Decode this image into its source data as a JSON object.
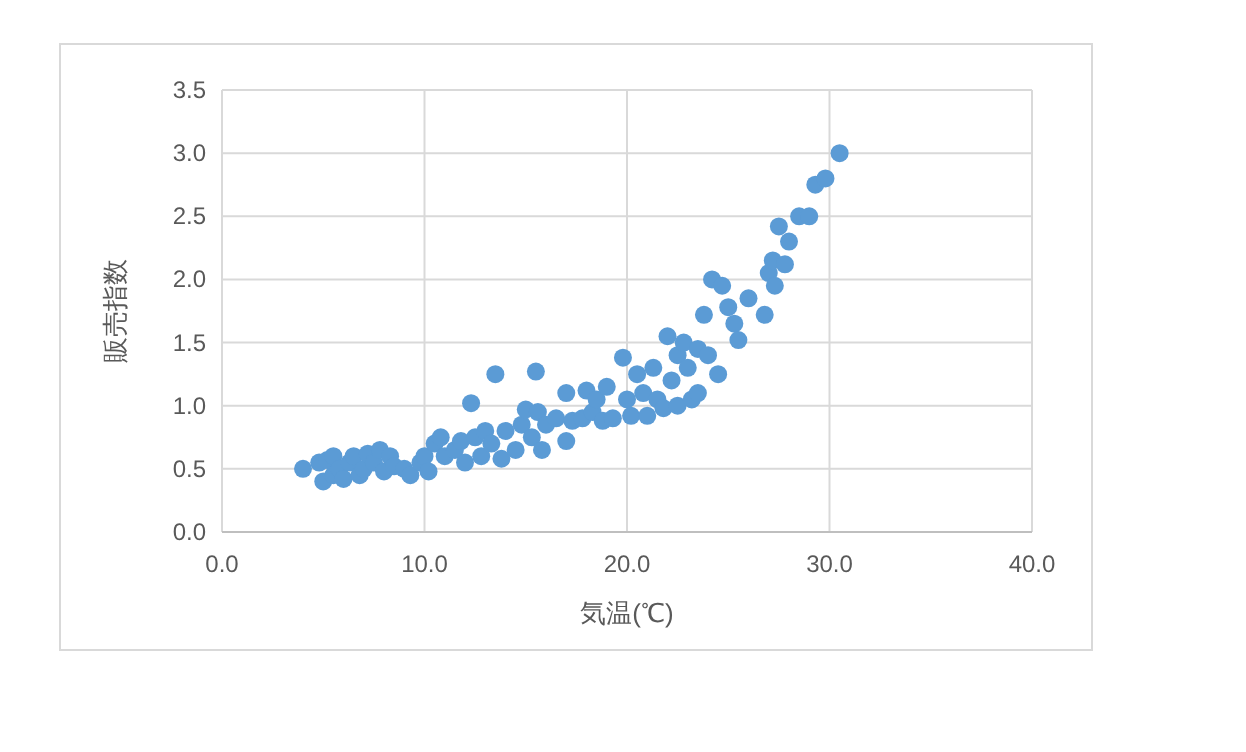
{
  "chart_data": {
    "type": "scatter",
    "xlabel": "気温(℃)",
    "ylabel": "販売指数",
    "grid": true,
    "marker": "circle",
    "xlim": [
      0,
      40
    ],
    "ylim": [
      0,
      3.5
    ],
    "xticks": [
      {
        "value": 0,
        "label": "0.0"
      },
      {
        "value": 10,
        "label": "10.0"
      },
      {
        "value": 20,
        "label": "20.0"
      },
      {
        "value": 30,
        "label": "30.0"
      },
      {
        "value": 40,
        "label": "40.0"
      }
    ],
    "yticks": [
      {
        "value": 0,
        "label": "0.0"
      },
      {
        "value": 0.5,
        "label": "0.5"
      },
      {
        "value": 1,
        "label": "1.0"
      },
      {
        "value": 1.5,
        "label": "1.5"
      },
      {
        "value": 2,
        "label": "2.0"
      },
      {
        "value": 2.5,
        "label": "2.5"
      },
      {
        "value": 3,
        "label": "3.0"
      },
      {
        "value": 3.5,
        "label": "3.5"
      }
    ],
    "series": [
      {
        "color": "#5b9bd5",
        "x": [
          4.0,
          4.8,
          5.0,
          5.2,
          5.5,
          5.5,
          5.8,
          6.0,
          6.3,
          6.5,
          6.8,
          7.0,
          7.2,
          7.5,
          7.8,
          8.0,
          8.3,
          8.5,
          9.0,
          9.3,
          9.8,
          10.0,
          10.2,
          10.5,
          10.8,
          11.0,
          11.5,
          11.8,
          12.0,
          12.3,
          12.5,
          12.8,
          13.0,
          13.3,
          13.5,
          13.8,
          14.0,
          14.5,
          14.8,
          15.0,
          15.3,
          15.5,
          15.6,
          15.8,
          16.0,
          16.5,
          17.0,
          17.0,
          17.3,
          17.8,
          18.0,
          18.3,
          18.5,
          18.8,
          19.0,
          19.3,
          19.8,
          20.0,
          20.2,
          20.5,
          20.8,
          21.0,
          21.3,
          21.5,
          21.8,
          22.0,
          22.2,
          22.5,
          22.5,
          22.8,
          23.0,
          23.2,
          23.5,
          23.5,
          23.8,
          24.0,
          24.2,
          24.5,
          24.7,
          25.0,
          25.3,
          25.5,
          26.0,
          26.8,
          27.0,
          27.2,
          27.3,
          27.5,
          27.8,
          28.0,
          28.5,
          29.0,
          29.3,
          29.8,
          30.5
        ],
        "values": [
          0.5,
          0.55,
          0.4,
          0.57,
          0.45,
          0.6,
          0.5,
          0.42,
          0.55,
          0.6,
          0.45,
          0.5,
          0.62,
          0.55,
          0.65,
          0.48,
          0.6,
          0.52,
          0.5,
          0.45,
          0.55,
          0.6,
          0.48,
          0.7,
          0.75,
          0.6,
          0.65,
          0.72,
          0.55,
          1.02,
          0.75,
          0.6,
          0.8,
          0.7,
          1.25,
          0.58,
          0.8,
          0.65,
          0.85,
          0.97,
          0.75,
          1.27,
          0.95,
          0.65,
          0.85,
          0.9,
          0.72,
          1.1,
          0.88,
          0.9,
          1.12,
          0.95,
          1.05,
          0.88,
          1.15,
          0.9,
          1.38,
          1.05,
          0.92,
          1.25,
          1.1,
          0.92,
          1.3,
          1.05,
          0.98,
          1.55,
          1.2,
          1.4,
          1.0,
          1.5,
          1.3,
          1.05,
          1.45,
          1.1,
          1.72,
          1.4,
          2.0,
          1.25,
          1.95,
          1.78,
          1.65,
          1.52,
          1.85,
          1.72,
          2.05,
          2.15,
          1.95,
          2.42,
          2.12,
          2.3,
          2.5,
          2.5,
          2.75,
          2.8,
          3.0
        ]
      }
    ]
  }
}
